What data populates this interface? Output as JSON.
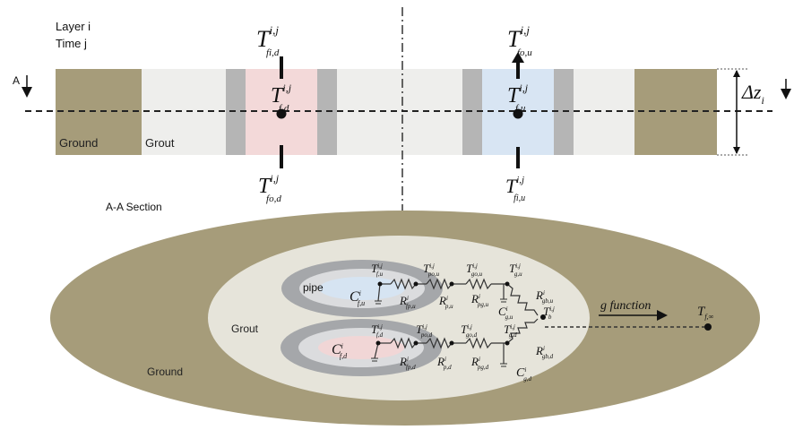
{
  "top_view": {
    "layer_label": "Layer i",
    "time_label": "Time j",
    "section_marker": "A",
    "ground_label": "Ground",
    "grout_label": "Grout",
    "t_in_top": {
      "main": "T",
      "sup": "i,j",
      "sub": "fi,d"
    },
    "t_mid_left": {
      "main": "T",
      "sup": "i,j",
      "sub": "f,d"
    },
    "t_out_left": {
      "main": "T",
      "sup": "i,j",
      "sub": "fo,d"
    },
    "t_in_top_right": {
      "main": "T",
      "sup": "i,j",
      "sub": "fo,u"
    },
    "t_mid_right": {
      "main": "T",
      "sup": "i,j",
      "sub": "f,u"
    },
    "t_out_right": {
      "main": "T",
      "sup": "i,j",
      "sub": "fi,u"
    },
    "dz": {
      "main": "Δz",
      "sub": "i"
    },
    "colors": {
      "ground": "#a69c7a",
      "grout": "#eeeeec",
      "pipe_wall": "#b5b5b5",
      "fluid_down": "#f3d9d9",
      "fluid_up": "#d8e5f3"
    }
  },
  "section": {
    "title": "A-A Section",
    "ground_label": "Ground",
    "grout_label": "Grout",
    "pipe_label": "pipe",
    "g_function_label": "g function",
    "t_far": "T",
    "t_far_sub": "f,∞",
    "nodes_upper": [
      {
        "main": "T",
        "sup": "i,j",
        "sub": "f,u"
      },
      {
        "main": "T",
        "sup": "i,j",
        "sub": "po,u"
      },
      {
        "main": "T",
        "sup": "i,j",
        "sub": "go,u"
      },
      {
        "main": "T",
        "sup": "i,j",
        "sub": "g,u"
      }
    ],
    "nodes_lower": [
      {
        "main": "T",
        "sup": "i,j",
        "sub": "f,d"
      },
      {
        "main": "T",
        "sup": "i,j",
        "sub": "po,d"
      },
      {
        "main": "T",
        "sup": "i,j",
        "sub": "go,d"
      },
      {
        "main": "T",
        "sup": "i,j",
        "sub": "g,d"
      }
    ],
    "t_b": {
      "main": "T",
      "sup": "i,j",
      "sub": "b"
    },
    "resistances_upper": [
      {
        "main": "R",
        "sup": "i",
        "sub": "fp,u"
      },
      {
        "main": "R",
        "sup": "i",
        "sub": "p,u"
      },
      {
        "main": "R",
        "sup": "i",
        "sub": "pg,u"
      },
      {
        "main": "R",
        "sup": "i",
        "sub": "gb,u"
      }
    ],
    "resistances_lower": [
      {
        "main": "R",
        "sup": "i",
        "sub": "fp,d"
      },
      {
        "main": "R",
        "sup": "i",
        "sub": "p,d"
      },
      {
        "main": "R",
        "sup": "i",
        "sub": "pg,d"
      },
      {
        "main": "R",
        "sup": "i",
        "sub": "gb,d"
      }
    ],
    "cap_upper_fluid": {
      "main": "C",
      "sup": "i",
      "sub": "f,u"
    },
    "cap_upper_grout": {
      "main": "C",
      "sup": "i",
      "sub": "g,u"
    },
    "cap_lower_fluid": {
      "main": "C",
      "sup": "i",
      "sub": "f,d"
    },
    "cap_lower_grout": {
      "main": "C",
      "sup": "i",
      "sub": "g,d"
    },
    "colors": {
      "ground": "#a69c7a",
      "grout_ring": "#e6e4da",
      "pipe_ring": "#a5a7aa",
      "fluid_up": "#d6e4f2",
      "fluid_down": "#f1d6d6"
    }
  }
}
